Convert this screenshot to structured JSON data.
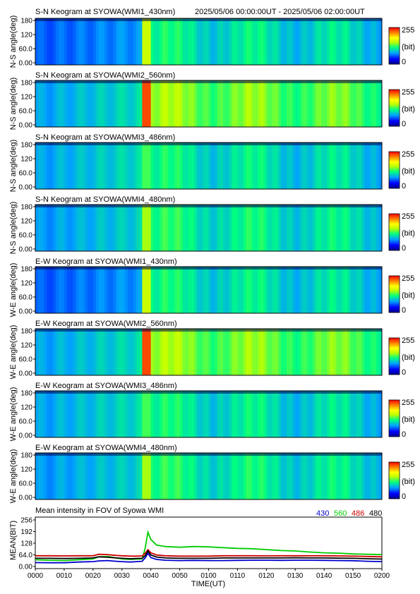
{
  "header": {
    "time_range": "2025/05/06 00:00:00UT - 2025/05/06 02:00:00UT"
  },
  "colorbar": {
    "max_label": "255",
    "unit_label": "(bit)",
    "min_label": "0",
    "stops": [
      "#00008b",
      "#0000ff",
      "#00a0ff",
      "#00ff80",
      "#c0ff00",
      "#ffff00",
      "#ff8000",
      "#ff0000"
    ]
  },
  "keograms": [
    {
      "title": "S-N Keogram at SYOWA(WMI1_430nm)",
      "ylabel": "N-S angle(deg)",
      "yticks": [
        "180",
        "120",
        "60.0",
        "0.00"
      ],
      "ylim": [
        0,
        180
      ],
      "x_range_ut": [
        "00:00",
        "02:00"
      ],
      "background_level": 0.3,
      "burst_peak": 0.62,
      "post_level": 0.42
    },
    {
      "title": "S-N Keogram at SYOWA(WMI2_560nm)",
      "ylabel": "N-S angle(deg)",
      "yticks": [
        "180",
        "120",
        "60.0",
        "0.00"
      ],
      "ylim": [
        0,
        180
      ],
      "x_range_ut": [
        "00:00",
        "02:00"
      ],
      "background_level": 0.4,
      "burst_peak": 0.92,
      "post_level": 0.55
    },
    {
      "title": "S-N Keogram at SYOWA(WMI3_486nm)",
      "ylabel": "N-S angle(deg)",
      "yticks": [
        "180",
        "120",
        "60.0",
        "0.00"
      ],
      "ylim": [
        0,
        180
      ],
      "x_range_ut": [
        "00:00",
        "02:00"
      ],
      "background_level": 0.4,
      "burst_peak": 0.5,
      "post_level": 0.42
    },
    {
      "title": "S-N Keogram at SYOWA(WMI4_480nm)",
      "ylabel": "N-S angle(deg)",
      "yticks": [
        "180",
        "120",
        "60.0",
        "0.00"
      ],
      "ylim": [
        0,
        180
      ],
      "x_range_ut": [
        "00:00",
        "02:00"
      ],
      "background_level": 0.38,
      "burst_peak": 0.58,
      "post_level": 0.44
    },
    {
      "title": "E-W Keogram at SYOWA(WMI1_430nm)",
      "ylabel": "W-E angle(deg)",
      "yticks": [
        "180",
        "120",
        "60.0",
        "0.00"
      ],
      "ylim": [
        0,
        180
      ],
      "x_range_ut": [
        "00:00",
        "02:00"
      ],
      "background_level": 0.3,
      "burst_peak": 0.62,
      "post_level": 0.42
    },
    {
      "title": "E-W Keogram at SYOWA(WMI2_560nm)",
      "ylabel": "W-E angle(deg)",
      "yticks": [
        "180",
        "120",
        "60.0",
        "0.00"
      ],
      "ylim": [
        0,
        180
      ],
      "x_range_ut": [
        "00:00",
        "02:00"
      ],
      "background_level": 0.4,
      "burst_peak": 0.92,
      "post_level": 0.55
    },
    {
      "title": "E-W Keogram at SYOWA(WMI3_486nm)",
      "ylabel": "W-E angle(deg)",
      "yticks": [
        "180",
        "120",
        "60.0",
        "0.00"
      ],
      "ylim": [
        0,
        180
      ],
      "x_range_ut": [
        "00:00",
        "02:00"
      ],
      "background_level": 0.4,
      "burst_peak": 0.5,
      "post_level": 0.42
    },
    {
      "title": "E-W Keogram at SYOWA(WMI4_480nm)",
      "ylabel": "W-E angle(deg)",
      "yticks": [
        "180",
        "120",
        "60.0",
        "0.00"
      ],
      "ylim": [
        0,
        180
      ],
      "x_range_ut": [
        "00:00",
        "02:00"
      ],
      "background_level": 0.38,
      "burst_peak": 0.58,
      "post_level": 0.44
    }
  ],
  "chart_data": {
    "type": "line",
    "title": "Mean intensity in FOV of Syowa WMI",
    "xlabel": "TIME(UT)",
    "ylabel": "MEAN(BIT)",
    "ylim": [
      0,
      256
    ],
    "yticks": [
      "256",
      "192",
      "128",
      "64.0",
      "0.00"
    ],
    "xlim_minutes": [
      0,
      120
    ],
    "xticks": [
      "0000",
      "0010",
      "0020",
      "0030",
      "0040",
      "0050",
      "0100",
      "0110",
      "0120",
      "0130",
      "0140",
      "0150",
      "0200"
    ],
    "legend_placement": "top-right",
    "x_minutes": [
      0,
      5,
      10,
      15,
      20,
      22,
      25,
      28,
      30,
      33,
      35,
      37,
      38,
      39,
      40,
      42,
      45,
      50,
      55,
      60,
      65,
      70,
      75,
      80,
      85,
      90,
      95,
      100,
      105,
      110,
      115,
      120
    ],
    "series": [
      {
        "name": "430",
        "color": "#0000cc",
        "values": [
          25,
          24,
          24,
          28,
          30,
          34,
          36,
          32,
          30,
          28,
          30,
          32,
          50,
          75,
          52,
          42,
          38,
          36,
          37,
          36,
          36,
          37,
          38,
          38,
          37,
          38,
          38,
          37,
          36,
          35,
          32,
          30
        ]
      },
      {
        "name": "560",
        "color": "#00cc00",
        "values": [
          40,
          38,
          36,
          40,
          45,
          56,
          58,
          50,
          45,
          42,
          44,
          45,
          100,
          190,
          150,
          120,
          112,
          108,
          112,
          110,
          106,
          102,
          100,
          95,
          90,
          88,
          82,
          78,
          76,
          72,
          70,
          68
        ]
      },
      {
        "name": "486",
        "color": "#cc0000",
        "values": [
          62,
          62,
          61,
          62,
          62,
          70,
          68,
          64,
          62,
          60,
          60,
          61,
          75,
          95,
          78,
          66,
          62,
          60,
          60,
          60,
          62,
          62,
          62,
          61,
          62,
          62,
          62,
          62,
          61,
          60,
          58,
          56
        ]
      },
      {
        "name": "480",
        "color": "#000000",
        "values": [
          48,
          48,
          47,
          48,
          50,
          56,
          54,
          50,
          48,
          46,
          47,
          48,
          62,
          88,
          66,
          55,
          50,
          48,
          48,
          48,
          50,
          50,
          50,
          50,
          50,
          51,
          50,
          50,
          49,
          48,
          46,
          44
        ]
      }
    ]
  }
}
